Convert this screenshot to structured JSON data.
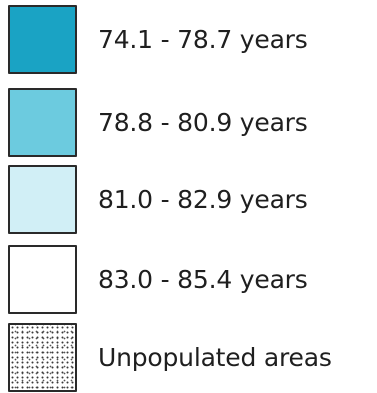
{
  "legend": {
    "items": [
      {
        "label": "74.1 - 78.7 years",
        "color": "#1aa3c4"
      },
      {
        "label": "78.8 - 80.9 years",
        "color": "#6ccbdf"
      },
      {
        "label": "81.0 - 82.9 years",
        "color": "#d1eff6"
      },
      {
        "label": "83.0 - 85.4 years",
        "color": "#ffffff"
      },
      {
        "label": "Unpopulated areas",
        "pattern": "stipple"
      }
    ]
  }
}
